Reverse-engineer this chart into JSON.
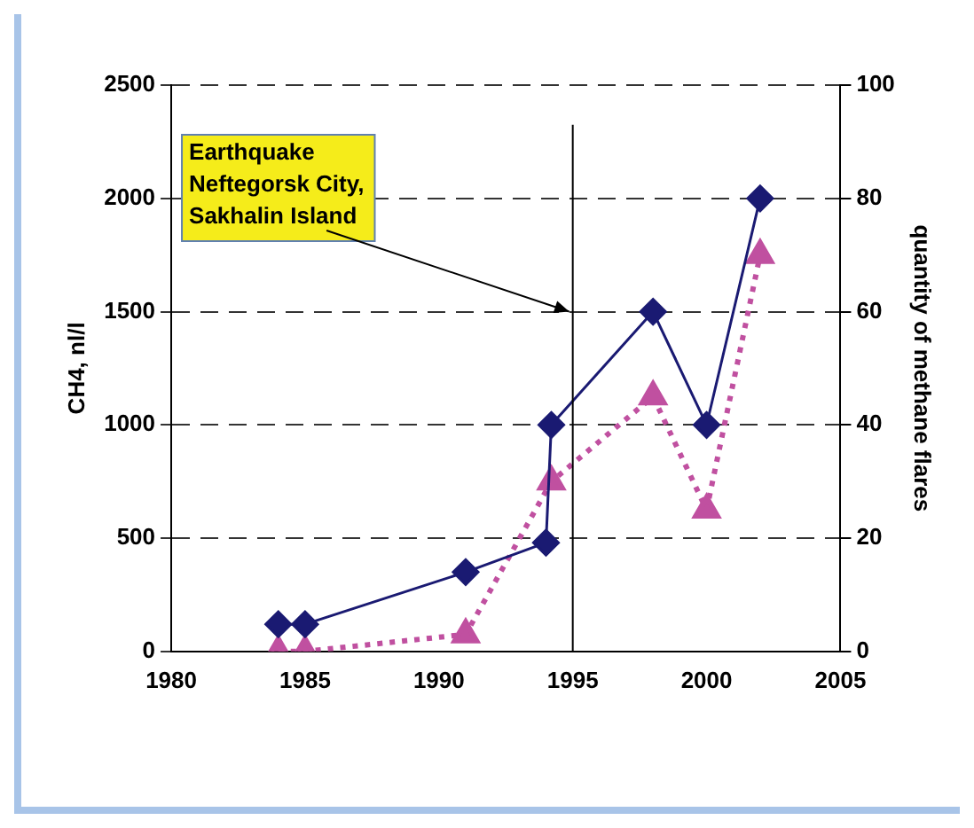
{
  "chart_data": {
    "type": "line",
    "ylabel": "CH4, nl/l",
    "y2label": "quantity of methane flares",
    "xlim": [
      1980,
      2005
    ],
    "xticks": [
      1980,
      1985,
      1990,
      1995,
      2000,
      2005
    ],
    "ylim": [
      0,
      2500
    ],
    "yticks": [
      0,
      500,
      1000,
      1500,
      2000,
      2500
    ],
    "y2lim": [
      0,
      100
    ],
    "y2ticks": [
      0,
      20,
      40,
      60,
      80,
      100
    ],
    "grid": "y",
    "legend": false,
    "ref_lines": [
      {
        "axis": "x",
        "value": 1995,
        "color": "#000000"
      }
    ],
    "annotations": [
      {
        "text": "Earthquake\nNeftegorsk City,\nSakhalin Island",
        "x": 1995,
        "y": 1500
      }
    ],
    "series": [
      {
        "color": "#1a1a72",
        "x": [
          1984,
          1985,
          1991,
          1994,
          1994.2,
          1998,
          2000,
          2002
        ],
        "values": [
          120,
          120,
          350,
          480,
          1000,
          1500,
          1000,
          2000
        ],
        "marker": "diamond",
        "line_style": "solid"
      },
      {
        "color": "#c050a0",
        "axis": "y2",
        "x": [
          1984,
          1985,
          1991,
          1994.2,
          1998,
          2000,
          2002
        ],
        "values": [
          0,
          0,
          3,
          30,
          45,
          25,
          70
        ],
        "marker": "triangle",
        "line_style": "dotted"
      }
    ]
  }
}
